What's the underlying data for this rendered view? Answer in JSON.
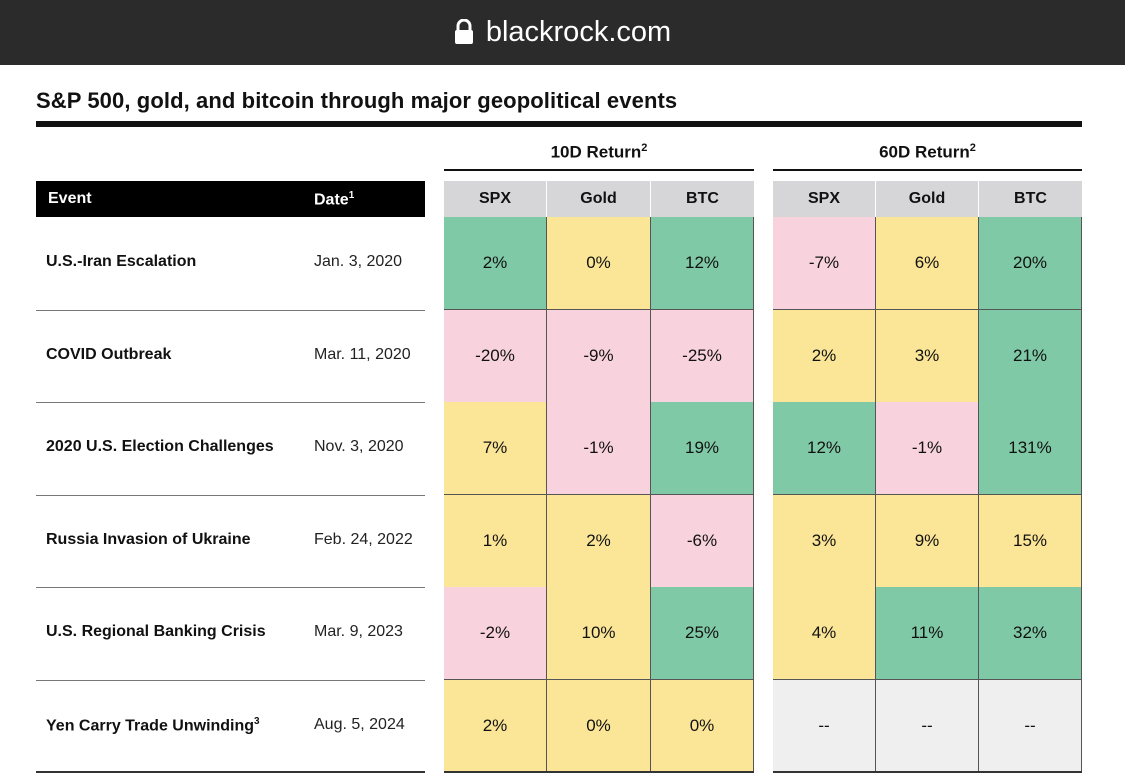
{
  "browser": {
    "url": "blackrock.com",
    "lock_icon": "lock-icon"
  },
  "table": {
    "title": "S&P 500, gold, and bitcoin through major geopolitical events",
    "groups": [
      {
        "label": "10D Return",
        "footnote": "2"
      },
      {
        "label": "60D Return",
        "footnote": "2"
      }
    ],
    "event_header": "Event",
    "date_header": "Date",
    "date_footnote": "1",
    "columns": [
      "SPX",
      "Gold",
      "BTC"
    ],
    "colors": {
      "positive": "#7fc9a6",
      "neutral": "#fbe697",
      "negative": "#f8d2dc",
      "na": "#efefef"
    },
    "rows": [
      {
        "event": "U.S.-Iran Escalation",
        "footnote": "",
        "date": "Jan. 3, 2020",
        "d10": [
          "2%",
          "0%",
          "12%"
        ],
        "d60": [
          "-7%",
          "6%",
          "20%"
        ]
      },
      {
        "event": "COVID Outbreak",
        "footnote": "",
        "date": "Mar. 11, 2020",
        "d10": [
          "-20%",
          "-9%",
          "-25%"
        ],
        "d60": [
          "2%",
          "3%",
          "21%"
        ]
      },
      {
        "event": "2020 U.S. Election Challenges",
        "footnote": "",
        "date": "Nov. 3, 2020",
        "d10": [
          "7%",
          "-1%",
          "19%"
        ],
        "d60": [
          "12%",
          "-1%",
          "131%"
        ]
      },
      {
        "event": "Russia Invasion of Ukraine",
        "footnote": "",
        "date": "Feb. 24, 2022",
        "d10": [
          "1%",
          "2%",
          "-6%"
        ],
        "d60": [
          "3%",
          "9%",
          "15%"
        ]
      },
      {
        "event": "U.S. Regional Banking Crisis",
        "footnote": "",
        "date": "Mar. 9, 2023",
        "d10": [
          "-2%",
          "10%",
          "25%"
        ],
        "d60": [
          "4%",
          "11%",
          "32%"
        ]
      },
      {
        "event": "Yen Carry Trade Unwinding",
        "footnote": "3",
        "date": "Aug. 5, 2024",
        "d10": [
          "2%",
          "0%",
          "0%"
        ],
        "d60": [
          "--",
          "--",
          "--"
        ]
      }
    ],
    "cell_colors": {
      "d10": [
        [
          "g",
          "y",
          "g"
        ],
        [
          "p",
          "p",
          "p"
        ],
        [
          "y",
          "p",
          "g"
        ],
        [
          "y",
          "y",
          "p"
        ],
        [
          "p",
          "y",
          "g"
        ],
        [
          "y",
          "y",
          "y"
        ]
      ],
      "d60": [
        [
          "p",
          "y",
          "g"
        ],
        [
          "y",
          "y",
          "g"
        ],
        [
          "g",
          "p",
          "g"
        ],
        [
          "y",
          "y",
          "y"
        ],
        [
          "y",
          "g",
          "g"
        ],
        [
          "n",
          "n",
          "n"
        ]
      ]
    }
  }
}
